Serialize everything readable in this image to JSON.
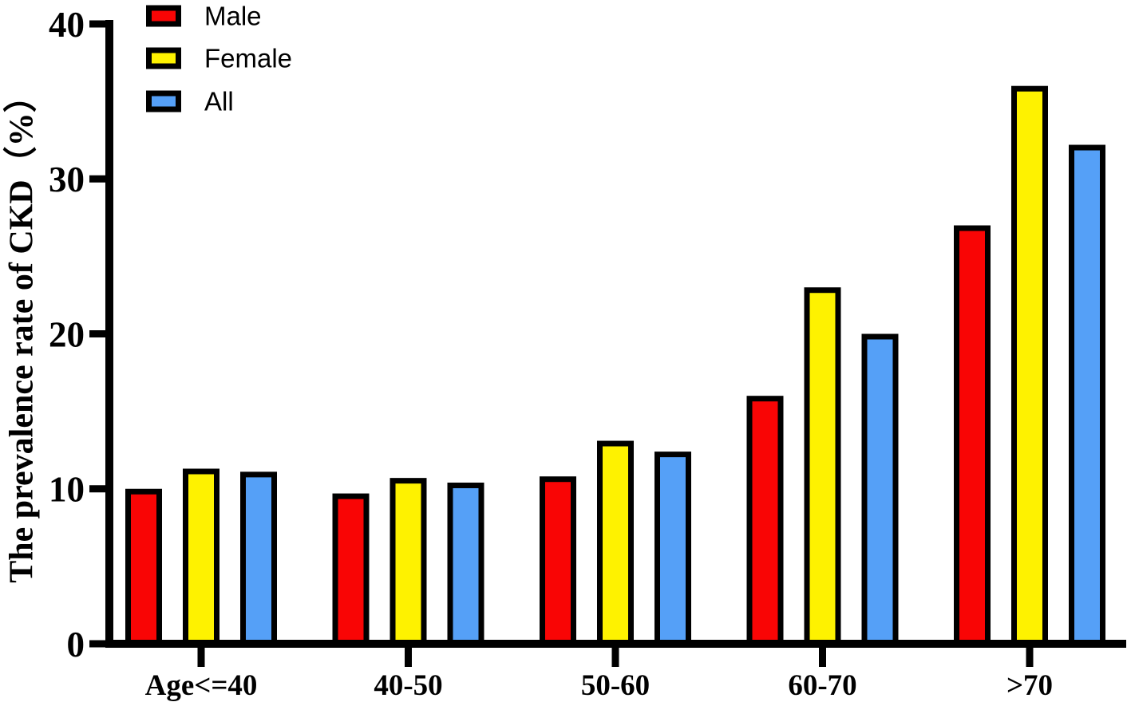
{
  "chart_data": {
    "type": "bar",
    "title": "",
    "xlabel": "",
    "ylabel": "The prevalence rate of CKD（%）",
    "ylim": [
      0,
      40
    ],
    "yticks": [
      0,
      10,
      20,
      30,
      40
    ],
    "grid": false,
    "legend_position": "top-left",
    "background_color": "#FFFFFF",
    "axis_color": "#000000",
    "bar_border_color": "#000000",
    "categories": [
      "Age<=40",
      "40-50",
      "50-60",
      "60-70",
      ">70"
    ],
    "series": [
      {
        "name": "Male",
        "color": "#F90505",
        "values": [
          10.0,
          9.7,
          10.8,
          16.0,
          27.0
        ]
      },
      {
        "name": "Female",
        "color": "#FEF200",
        "values": [
          11.3,
          10.7,
          13.1,
          23.0,
          36.0
        ]
      },
      {
        "name": "All",
        "color": "#55A0F7",
        "values": [
          11.1,
          10.4,
          12.4,
          20.0,
          32.2
        ]
      }
    ]
  }
}
